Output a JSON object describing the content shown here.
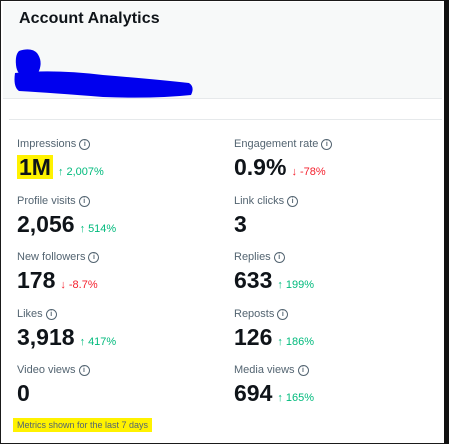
{
  "header": {
    "title": "Account Analytics"
  },
  "metrics": [
    {
      "label": "Impressions",
      "value": "1M",
      "change": "2,007%",
      "direction": "up",
      "highlight": true
    },
    {
      "label": "Engagement rate",
      "value": "0.9%",
      "change": "-78%",
      "direction": "down",
      "highlight": false
    },
    {
      "label": "Profile visits",
      "value": "2,056",
      "change": "514%",
      "direction": "up",
      "highlight": false
    },
    {
      "label": "Link clicks",
      "value": "3",
      "change": "",
      "direction": "none",
      "highlight": false
    },
    {
      "label": "New followers",
      "value": "178",
      "change": "-8.7%",
      "direction": "down",
      "highlight": false
    },
    {
      "label": "Replies",
      "value": "633",
      "change": "199%",
      "direction": "up",
      "highlight": false
    },
    {
      "label": "Likes",
      "value": "3,918",
      "change": "417%",
      "direction": "up",
      "highlight": false
    },
    {
      "label": "Reposts",
      "value": "126",
      "change": "186%",
      "direction": "up",
      "highlight": false
    },
    {
      "label": "Video views",
      "value": "0",
      "change": "",
      "direction": "none",
      "highlight": false
    },
    {
      "label": "Media views",
      "value": "694",
      "change": "165%",
      "direction": "up",
      "highlight": false
    }
  ],
  "footer": {
    "note": "Metrics shown for the last 7 days"
  },
  "icons": {
    "info": "info-icon",
    "up": "arrow-up-icon",
    "down": "arrow-down-icon"
  },
  "colors": {
    "positive": "#00ba7c",
    "negative": "#f4212e",
    "highlight": "#fff200",
    "redaction": "#0000ee"
  }
}
